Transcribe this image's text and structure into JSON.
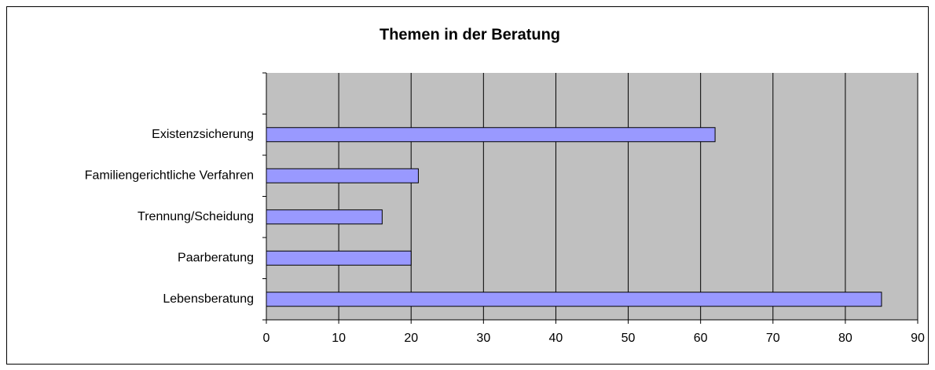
{
  "chart_data": {
    "type": "bar",
    "orientation": "horizontal",
    "title": "Themen in der Beratung",
    "categories": [
      "Lebensberatung",
      "Paarberatung",
      "Trennung/Scheidung",
      "Familiengerichtliche Verfahren",
      "Existenzsicherung",
      null
    ],
    "values": [
      85,
      20,
      16,
      21,
      62,
      null
    ],
    "color": "#9999ff",
    "background": "#c0c0c0",
    "xlim": [
      0,
      90
    ],
    "xticks": [
      0,
      10,
      20,
      30,
      40,
      50,
      60,
      70,
      80,
      90
    ],
    "grid": true
  }
}
